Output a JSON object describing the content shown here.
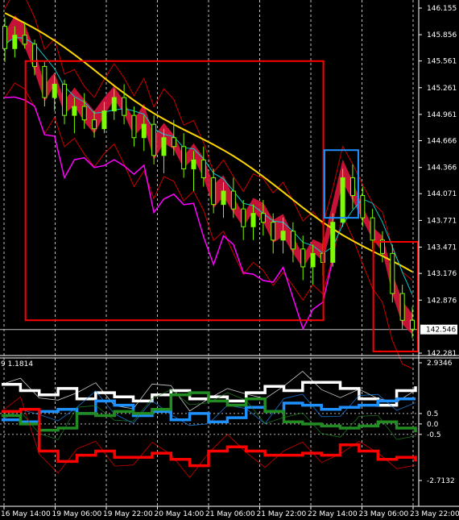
{
  "chart_data": [
    {
      "type": "line",
      "name_hint": "",
      "xlabel": "",
      "ylabel": "",
      "ylim": [
        142.281,
        146.155
      ],
      "y_ticks": [
        "146.155",
        "145.856",
        "145.561",
        "145.261",
        "144.961",
        "144.666",
        "144.366",
        "144.071",
        "143.771",
        "143.471",
        "143.176",
        "142.876",
        "142.546",
        "142.281"
      ],
      "current_price": "142.546",
      "candles": [
        [
          145.95,
          146.05,
          145.55,
          145.7
        ],
        [
          145.7,
          145.95,
          145.6,
          145.85
        ],
        [
          145.85,
          146.0,
          145.7,
          145.75
        ],
        [
          145.75,
          145.8,
          145.4,
          145.5
        ],
        [
          145.5,
          145.55,
          145.05,
          145.15
        ],
        [
          145.15,
          145.4,
          145.0,
          145.3
        ],
        [
          145.3,
          145.35,
          144.85,
          144.95
        ],
        [
          144.95,
          145.15,
          144.75,
          145.05
        ],
        [
          145.05,
          145.2,
          144.8,
          144.9
        ],
        [
          144.9,
          145.0,
          144.7,
          144.8
        ],
        [
          144.8,
          145.1,
          144.75,
          145.0
        ],
        [
          145.0,
          145.25,
          144.9,
          145.15
        ],
        [
          145.15,
          145.3,
          144.85,
          144.95
        ],
        [
          144.95,
          145.05,
          144.6,
          144.7
        ],
        [
          144.7,
          144.95,
          144.55,
          144.85
        ],
        [
          144.85,
          144.95,
          144.4,
          144.5
        ],
        [
          144.5,
          144.8,
          144.3,
          144.7
        ],
        [
          144.7,
          144.9,
          144.5,
          144.6
        ],
        [
          144.6,
          144.75,
          144.25,
          144.35
        ],
        [
          144.35,
          144.55,
          144.1,
          144.45
        ],
        [
          144.45,
          144.6,
          144.15,
          144.25
        ],
        [
          144.25,
          144.35,
          143.85,
          143.95
        ],
        [
          143.95,
          144.2,
          143.8,
          144.1
        ],
        [
          144.1,
          144.25,
          143.8,
          143.9
        ],
        [
          143.9,
          144.0,
          143.55,
          143.7
        ],
        [
          143.7,
          143.95,
          143.55,
          143.85
        ],
        [
          143.85,
          144.0,
          143.6,
          143.75
        ],
        [
          143.75,
          143.85,
          143.4,
          143.55
        ],
        [
          143.55,
          143.8,
          143.4,
          143.65
        ],
        [
          143.65,
          143.75,
          143.3,
          143.45
        ],
        [
          143.45,
          143.6,
          143.1,
          143.25
        ],
        [
          143.25,
          143.5,
          143.05,
          143.4
        ],
        [
          143.4,
          143.55,
          143.15,
          143.3
        ],
        [
          143.3,
          143.85,
          143.25,
          143.75
        ],
        [
          143.75,
          144.35,
          143.7,
          144.25
        ],
        [
          144.25,
          144.4,
          143.9,
          144.05
        ],
        [
          144.05,
          144.15,
          143.7,
          143.8
        ],
        [
          143.8,
          143.9,
          143.45,
          143.55
        ],
        [
          143.55,
          143.65,
          143.3,
          143.4
        ],
        [
          143.4,
          143.5,
          142.85,
          142.95
        ],
        [
          142.95,
          143.05,
          142.55,
          142.65
        ],
        [
          142.65,
          142.8,
          142.45,
          142.55
        ]
      ],
      "x_ticks": [
        "16 May 14:00",
        "19 May 06:00",
        "19 May 22:00",
        "20 May 14:00",
        "21 May 06:00",
        "21 May 22:00",
        "22 May 14:00",
        "23 May 06:00",
        "23 May 22:00"
      ],
      "colors": {
        "bull": "#7CFC00",
        "bear": "#7CFC00",
        "cloud": "#DC143C",
        "ma_slow": "#FFD700",
        "ma_fast": "#00CED1",
        "envelope": "#CC0000",
        "lagging": "#FF00FF",
        "box_red": "#FF0000",
        "box_blue": "#1E90FF"
      }
    },
    {
      "type": "line",
      "ylim": [
        -2.7132,
        2.9346
      ],
      "header": "9 1.1814",
      "y_ticks": [
        "2.9346",
        "0.5",
        "0.0",
        "-0.5",
        "-2.7132"
      ],
      "series": [
        {
          "color": "#FFFFFF",
          "values": [
            1.9,
            1.6,
            1.4,
            1.7,
            1.2,
            1.5,
            1.3,
            1.1,
            1.4,
            1.6,
            1.2,
            1.3,
            1.1,
            1.5,
            1.8,
            1.6,
            2.0,
            2.0,
            1.7,
            1.2,
            0.9,
            1.6,
            1.8
          ]
        },
        {
          "color": "#1E90FF",
          "values": [
            0.2,
            0.1,
            0.6,
            0.7,
            0.5,
            1.1,
            0.9,
            0.4,
            0.6,
            0.2,
            0.5,
            0.1,
            0.3,
            0.8,
            0.6,
            1.0,
            0.9,
            0.7,
            0.8,
            0.9,
            1.1,
            1.2,
            1.2
          ]
        },
        {
          "color": "#228B22",
          "values": [
            0.4,
            0.0,
            -0.3,
            -0.2,
            0.5,
            0.4,
            0.6,
            0.5,
            0.7,
            1.4,
            1.5,
            1.1,
            0.9,
            1.2,
            0.6,
            0.1,
            0.0,
            -0.1,
            -0.2,
            -0.1,
            0.1,
            -0.2,
            -0.4
          ]
        },
        {
          "color": "#FF0000",
          "values": [
            0.6,
            0.7,
            -1.3,
            -1.8,
            -1.5,
            -1.3,
            -1.6,
            -1.6,
            -1.4,
            -1.7,
            -2.0,
            -1.3,
            -1.1,
            -1.3,
            -1.5,
            -1.5,
            -1.4,
            -1.5,
            -1.0,
            -1.3,
            -1.7,
            -1.6,
            -1.8
          ]
        }
      ]
    }
  ]
}
